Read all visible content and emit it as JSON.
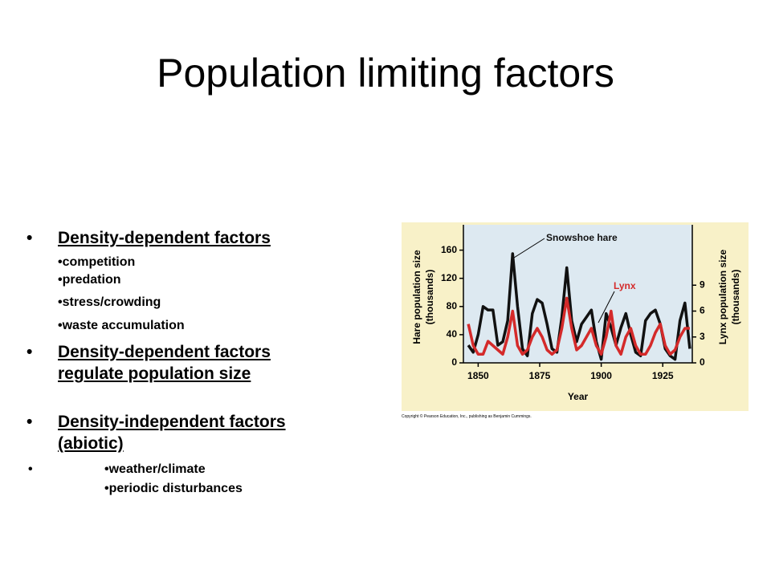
{
  "slide": {
    "title": "Population limiting factors",
    "bullets": [
      {
        "lines": [
          "Density-dependent factors"
        ],
        "subs": [
          "•competition",
          "•predation",
          "•stress/crowding",
          "•waste accumulation"
        ]
      },
      {
        "lines": [
          "Density-dependent factors",
          "regulate population size"
        ]
      },
      {
        "lines": [
          "Density-independent factors",
          "(abiotic)"
        ]
      },
      {
        "subs": [
          "•weather/climate",
          "•periodic disturbances"
        ]
      }
    ],
    "copyright": "Copyright © Pearson Education, Inc., publishing as Benjamin Cummings."
  },
  "chart_data": {
    "type": "line",
    "x_label": "Year",
    "y_label": [
      "Hare population size",
      "(thousands)"
    ],
    "y2_label": [
      "Lynx population size",
      "(thousands)"
    ],
    "x": [
      1846,
      1848,
      1850,
      1852,
      1854,
      1856,
      1858,
      1860,
      1862,
      1864,
      1866,
      1868,
      1870,
      1872,
      1874,
      1876,
      1878,
      1880,
      1882,
      1884,
      1886,
      1888,
      1890,
      1892,
      1894,
      1896,
      1898,
      1900,
      1902,
      1904,
      1906,
      1908,
      1910,
      1912,
      1914,
      1916,
      1918,
      1920,
      1922,
      1924,
      1926,
      1928,
      1930,
      1932,
      1934,
      1936
    ],
    "series": [
      {
        "name": "Snowshoe hare",
        "color": "#111111",
        "values": [
          25,
          15,
          40,
          80,
          75,
          75,
          25,
          30,
          60,
          155,
          80,
          20,
          10,
          70,
          90,
          85,
          55,
          20,
          15,
          65,
          135,
          60,
          30,
          55,
          65,
          75,
          30,
          5,
          70,
          50,
          25,
          50,
          70,
          40,
          15,
          10,
          60,
          70,
          75,
          55,
          20,
          10,
          5,
          60,
          85,
          20
        ]
      },
      {
        "name": "Lynx",
        "color": "#d42a2a",
        "axis": "y2",
        "values": [
          4.5,
          2,
          1,
          1,
          2.5,
          2,
          1.5,
          1,
          3,
          6,
          2,
          1,
          1.5,
          3,
          4,
          3,
          1.5,
          1,
          1.5,
          4,
          7.5,
          4,
          1.5,
          2,
          3,
          4,
          2,
          1,
          3,
          6,
          2,
          1,
          3,
          4,
          2,
          1,
          1,
          2,
          3.5,
          4.5,
          2,
          1,
          1.5,
          3,
          4,
          4
        ]
      }
    ],
    "xlim": [
      1844,
      1937
    ],
    "xticks": [
      1850,
      1875,
      1900,
      1925
    ],
    "ylim": [
      0,
      196
    ],
    "yticks": [
      0,
      40,
      80,
      120,
      160
    ],
    "y2lim": [
      0,
      16
    ],
    "y2ticks": [
      0,
      3,
      6,
      9
    ]
  }
}
